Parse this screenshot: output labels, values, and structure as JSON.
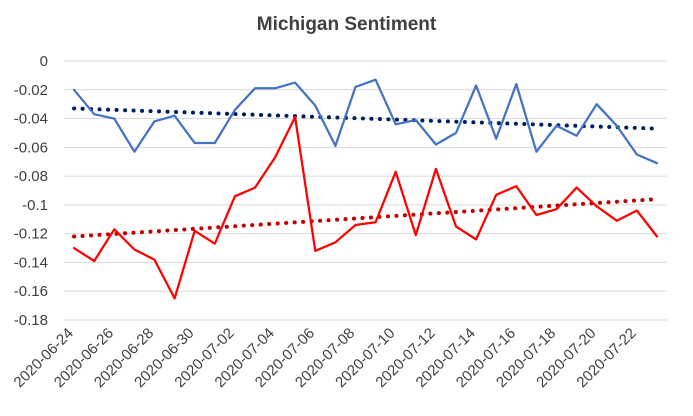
{
  "chart_data": {
    "type": "line",
    "title": "Michigan Sentiment",
    "xlabel": "",
    "ylabel": "",
    "ylim": [
      -0.18,
      0
    ],
    "yticks": [
      0,
      -0.02,
      -0.04,
      -0.06,
      -0.08,
      -0.1,
      -0.12,
      -0.14,
      -0.16,
      -0.18
    ],
    "ytick_labels": [
      "0",
      "-0.02",
      "-0.04",
      "-0.06",
      "-0.08",
      "-0.1",
      "-0.12",
      "-0.14",
      "-0.16",
      "-0.18"
    ],
    "grid": true,
    "legend": "none",
    "x": [
      "2020-06-24",
      "2020-06-25",
      "2020-06-26",
      "2020-06-27",
      "2020-06-28",
      "2020-06-29",
      "2020-06-30",
      "2020-07-01",
      "2020-07-02",
      "2020-07-03",
      "2020-07-04",
      "2020-07-05",
      "2020-07-06",
      "2020-07-07",
      "2020-07-08",
      "2020-07-09",
      "2020-07-10",
      "2020-07-11",
      "2020-07-12",
      "2020-07-13",
      "2020-07-14",
      "2020-07-15",
      "2020-07-16",
      "2020-07-17",
      "2020-07-18",
      "2020-07-19",
      "2020-07-20",
      "2020-07-21",
      "2020-07-22",
      "2020-07-23"
    ],
    "x_tick_labels": [
      "2020-06-24",
      "2020-06-26",
      "2020-06-28",
      "2020-06-30",
      "2020-07-02",
      "2020-07-04",
      "2020-07-06",
      "2020-07-08",
      "2020-07-10",
      "2020-07-12",
      "2020-07-14",
      "2020-07-16",
      "2020-07-18",
      "2020-07-20",
      "2020-07-22"
    ],
    "series": [
      {
        "color": "#4472C4",
        "values": [
          -0.02,
          -0.037,
          -0.04,
          -0.063,
          -0.042,
          -0.038,
          -0.057,
          -0.057,
          -0.034,
          -0.019,
          -0.019,
          -0.015,
          -0.031,
          -0.059,
          -0.018,
          -0.013,
          -0.044,
          -0.041,
          -0.058,
          -0.05,
          -0.017,
          -0.054,
          -0.016,
          -0.063,
          -0.045,
          -0.052,
          -0.03,
          -0.045,
          -0.065,
          -0.071
        ]
      },
      {
        "color": "#FF0000",
        "values": [
          -0.13,
          -0.139,
          -0.117,
          -0.131,
          -0.138,
          -0.165,
          -0.118,
          -0.127,
          -0.094,
          -0.088,
          -0.067,
          -0.039,
          -0.132,
          -0.126,
          -0.114,
          -0.112,
          -0.077,
          -0.121,
          -0.075,
          -0.115,
          -0.124,
          -0.093,
          -0.087,
          -0.107,
          -0.103,
          -0.088,
          -0.101,
          -0.111,
          -0.104,
          -0.122
        ]
      }
    ],
    "trendlines": [
      {
        "color": "#002060",
        "start": -0.033,
        "end": -0.047
      },
      {
        "color": "#C00000",
        "start": -0.122,
        "end": -0.096
      }
    ]
  }
}
